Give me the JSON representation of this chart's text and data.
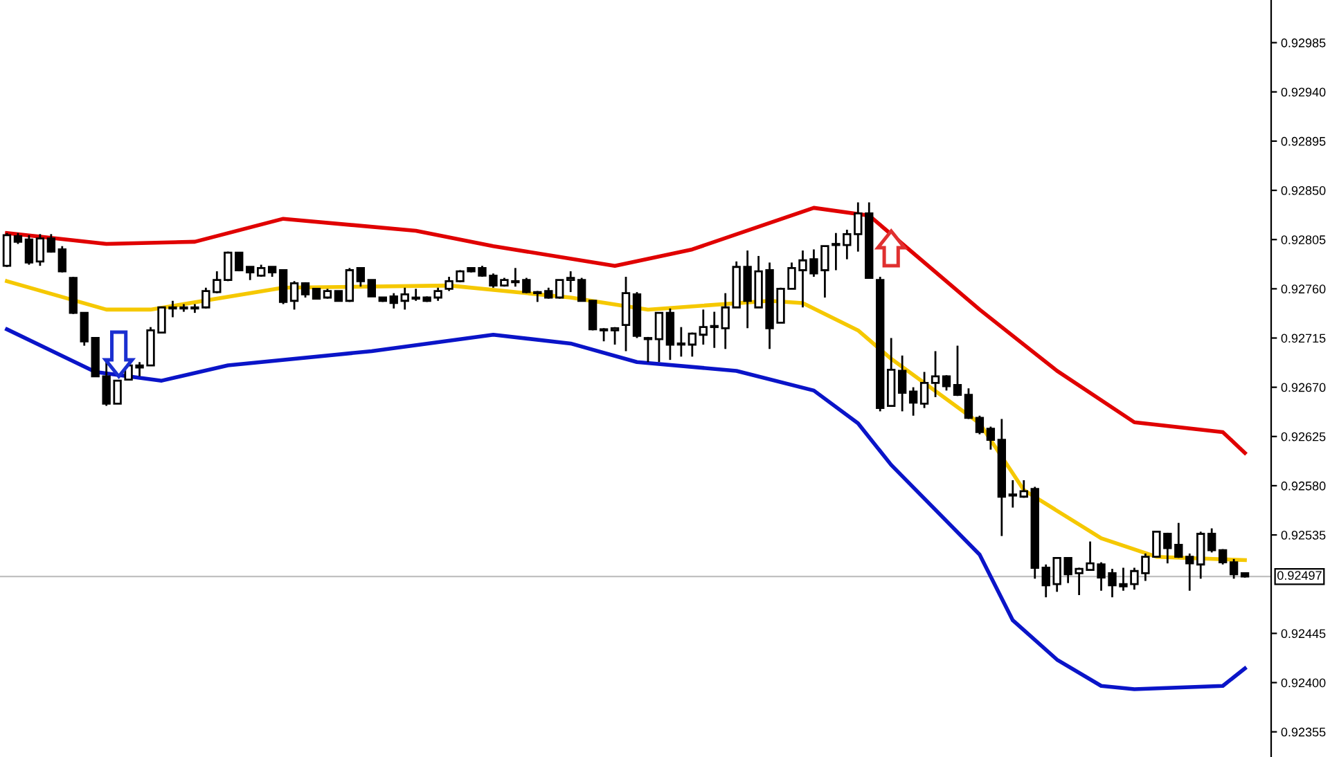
{
  "chart_data": {
    "type": "candlestick",
    "categories": [
      null,
      null,
      null,
      null,
      null,
      null,
      null,
      null,
      null,
      null,
      null,
      null,
      null,
      null,
      null,
      null,
      null,
      null,
      null,
      null,
      null,
      null,
      null,
      null,
      null,
      null,
      null,
      null,
      null,
      null,
      null,
      null,
      null,
      null,
      null,
      null,
      null,
      null,
      null,
      null,
      null,
      null,
      null,
      null,
      null,
      null,
      null,
      null,
      null,
      null,
      null,
      null,
      null,
      null,
      null,
      null,
      null,
      null,
      null,
      null,
      null,
      null,
      null,
      null,
      null,
      null,
      null,
      null,
      null,
      null,
      null,
      null,
      null,
      null,
      null,
      null,
      null,
      null,
      null,
      null,
      null,
      null,
      null,
      null,
      null,
      null,
      null,
      null,
      null,
      null,
      null,
      null,
      null,
      null,
      null,
      null,
      null,
      null,
      null,
      null,
      null,
      null,
      null,
      null,
      null,
      null,
      null,
      null,
      null,
      null,
      null,
      null,
      null
    ],
    "ohlc": [
      [
        0.92781,
        0.92811,
        0.9278,
        0.92809
      ],
      [
        0.92808,
        0.92811,
        0.92801,
        0.92803
      ],
      [
        0.92805,
        0.92809,
        0.92782,
        0.92784
      ],
      [
        0.92785,
        0.9281,
        0.92781,
        0.92806
      ],
      [
        0.92806,
        0.9281,
        0.92793,
        0.92794
      ],
      [
        0.92796,
        0.92799,
        0.92775,
        0.92776
      ],
      [
        0.9277,
        0.92771,
        0.92737,
        0.92738
      ],
      [
        0.92738,
        0.92738,
        0.92708,
        0.92712
      ],
      [
        0.92715,
        0.92715,
        0.9268,
        0.9268
      ],
      [
        0.9268,
        0.92696,
        0.92653,
        0.92655
      ],
      [
        0.92655,
        0.92676,
        0.92655,
        0.92676
      ],
      [
        0.92677,
        0.9269,
        0.92677,
        0.9269
      ],
      [
        0.9269,
        0.92693,
        0.9268,
        0.92688
      ],
      [
        0.9269,
        0.92725,
        0.9269,
        0.92722
      ],
      [
        0.9272,
        0.92743,
        0.9272,
        0.92743
      ],
      [
        0.92743,
        0.92749,
        0.92734,
        0.92742
      ],
      [
        0.92742,
        0.92746,
        0.92739,
        0.92743
      ],
      [
        0.92742,
        0.92746,
        0.92738,
        0.92743
      ],
      [
        0.92743,
        0.92761,
        0.92742,
        0.92758
      ],
      [
        0.92757,
        0.92776,
        0.92756,
        0.92768
      ],
      [
        0.92768,
        0.92794,
        0.92767,
        0.92793
      ],
      [
        0.92793,
        0.92793,
        0.92776,
        0.92777
      ],
      [
        0.9278,
        0.9278,
        0.92768,
        0.92775
      ],
      [
        0.92772,
        0.92782,
        0.92771,
        0.92779
      ],
      [
        0.9278,
        0.9278,
        0.92771,
        0.92775
      ],
      [
        0.92777,
        0.92777,
        0.92746,
        0.92748
      ],
      [
        0.92749,
        0.92767,
        0.92741,
        0.92765
      ],
      [
        0.92765,
        0.92766,
        0.92752,
        0.92755
      ],
      [
        0.9276,
        0.9276,
        0.92751,
        0.92751
      ],
      [
        0.92752,
        0.9276,
        0.92751,
        0.92758
      ],
      [
        0.92758,
        0.92758,
        0.92749,
        0.92749
      ],
      [
        0.92749,
        0.92779,
        0.92748,
        0.92777
      ],
      [
        0.92779,
        0.92779,
        0.92762,
        0.92767
      ],
      [
        0.92768,
        0.92768,
        0.92753,
        0.92753
      ],
      [
        0.92752,
        0.92752,
        0.92748,
        0.92749
      ],
      [
        0.92753,
        0.92756,
        0.92742,
        0.92747
      ],
      [
        0.92749,
        0.92761,
        0.92741,
        0.92755
      ],
      [
        0.92751,
        0.9276,
        0.92749,
        0.92752
      ],
      [
        0.92752,
        0.92753,
        0.92748,
        0.92749
      ],
      [
        0.92752,
        0.92761,
        0.92749,
        0.92758
      ],
      [
        0.9276,
        0.92771,
        0.92758,
        0.92767
      ],
      [
        0.92767,
        0.92777,
        0.92766,
        0.92776
      ],
      [
        0.92779,
        0.92779,
        0.92775,
        0.92776
      ],
      [
        0.92779,
        0.92781,
        0.92771,
        0.92772
      ],
      [
        0.92772,
        0.92774,
        0.92761,
        0.92763
      ],
      [
        0.92763,
        0.9277,
        0.92762,
        0.92768
      ],
      [
        0.92766,
        0.92779,
        0.92762,
        0.92767
      ],
      [
        0.92768,
        0.9277,
        0.92756,
        0.92757
      ],
      [
        0.92757,
        0.92758,
        0.92748,
        0.92756
      ],
      [
        0.92758,
        0.92761,
        0.92751,
        0.92752
      ],
      [
        0.92752,
        0.92768,
        0.92751,
        0.92768
      ],
      [
        0.92768,
        0.92776,
        0.92757,
        0.9277
      ],
      [
        0.92768,
        0.9277,
        0.92749,
        0.92749
      ],
      [
        0.92749,
        0.92749,
        0.92722,
        0.92723
      ],
      [
        0.92723,
        0.92724,
        0.92712,
        0.92722
      ],
      [
        0.92722,
        0.92725,
        0.92709,
        0.92724
      ],
      [
        0.92727,
        0.92771,
        0.92703,
        0.92756
      ],
      [
        0.92755,
        0.92757,
        0.92715,
        0.92717
      ],
      [
        0.92715,
        0.92716,
        0.92693,
        0.92714
      ],
      [
        0.92714,
        0.92738,
        0.92693,
        0.92738
      ],
      [
        0.92738,
        0.92742,
        0.92695,
        0.92709
      ],
      [
        0.92709,
        0.92725,
        0.92698,
        0.9271
      ],
      [
        0.92709,
        0.9272,
        0.92698,
        0.92719
      ],
      [
        0.92718,
        0.92741,
        0.92709,
        0.92725
      ],
      [
        0.92725,
        0.92739,
        0.92706,
        0.92726
      ],
      [
        0.92724,
        0.92756,
        0.92705,
        0.92743
      ],
      [
        0.92743,
        0.92785,
        0.92743,
        0.9278
      ],
      [
        0.9278,
        0.92795,
        0.92724,
        0.92749
      ],
      [
        0.92743,
        0.9279,
        0.92743,
        0.92776
      ],
      [
        0.92777,
        0.92784,
        0.92705,
        0.92724
      ],
      [
        0.92729,
        0.92761,
        0.92729,
        0.9276
      ],
      [
        0.9276,
        0.92784,
        0.9276,
        0.92779
      ],
      [
        0.92777,
        0.92795,
        0.92743,
        0.92786
      ],
      [
        0.92787,
        0.92796,
        0.92771,
        0.92774
      ],
      [
        0.92777,
        0.92799,
        0.92752,
        0.92799
      ],
      [
        0.928,
        0.92811,
        0.92777,
        0.92801
      ],
      [
        0.928,
        0.92814,
        0.92787,
        0.9281
      ],
      [
        0.9281,
        0.92839,
        0.92794,
        0.92829
      ],
      [
        0.92829,
        0.92839,
        0.9277,
        0.9277
      ],
      [
        0.92768,
        0.92771,
        0.92648,
        0.92651
      ],
      [
        0.92653,
        0.92715,
        0.92653,
        0.92686
      ],
      [
        0.92685,
        0.92699,
        0.92648,
        0.92665
      ],
      [
        0.92666,
        0.9267,
        0.92644,
        0.92656
      ],
      [
        0.92655,
        0.92684,
        0.92651,
        0.92674
      ],
      [
        0.92674,
        0.92703,
        0.92661,
        0.9268
      ],
      [
        0.9268,
        0.92681,
        0.92667,
        0.92671
      ],
      [
        0.92672,
        0.92708,
        0.92662,
        0.92663
      ],
      [
        0.92663,
        0.92669,
        0.92641,
        0.92642
      ],
      [
        0.92642,
        0.92644,
        0.92627,
        0.92629
      ],
      [
        0.92632,
        0.92634,
        0.92613,
        0.92622
      ],
      [
        0.92622,
        0.92641,
        0.92534,
        0.9257
      ],
      [
        0.92571,
        0.92585,
        0.9256,
        0.92572
      ],
      [
        0.9257,
        0.92585,
        0.92569,
        0.92575
      ],
      [
        0.92577,
        0.92579,
        0.92495,
        0.92505
      ],
      [
        0.92505,
        0.92508,
        0.92478,
        0.92489
      ],
      [
        0.9249,
        0.92514,
        0.92483,
        0.92514
      ],
      [
        0.92514,
        0.92514,
        0.92491,
        0.92499
      ],
      [
        0.925,
        0.92505,
        0.9248,
        0.92504
      ],
      [
        0.92503,
        0.92529,
        0.92503,
        0.92509
      ],
      [
        0.92508,
        0.9251,
        0.92484,
        0.92496
      ],
      [
        0.925,
        0.92504,
        0.92478,
        0.92489
      ],
      [
        0.9249,
        0.92505,
        0.92484,
        0.92488
      ],
      [
        0.9249,
        0.92505,
        0.92485,
        0.92502
      ],
      [
        0.925,
        0.92518,
        0.92493,
        0.92515
      ],
      [
        0.92515,
        0.92538,
        0.92515,
        0.92538
      ],
      [
        0.92536,
        0.92537,
        0.92509,
        0.92523
      ],
      [
        0.92526,
        0.92546,
        0.92514,
        0.92515
      ],
      [
        0.92515,
        0.92518,
        0.92484,
        0.92509
      ],
      [
        0.92508,
        0.92538,
        0.92495,
        0.92536
      ],
      [
        0.92536,
        0.92541,
        0.92519,
        0.92521
      ],
      [
        0.92521,
        0.92522,
        0.92508,
        0.9251
      ],
      [
        0.9251,
        0.92513,
        0.92495,
        0.92499
      ],
      [
        0.925,
        0.925,
        0.92496,
        0.92497
      ]
    ],
    "series": [
      {
        "type": "line",
        "color": "#e00000",
        "values": [
          0.92811,
          null,
          null,
          null,
          null,
          null,
          null,
          null,
          null,
          0.92801,
          null,
          null,
          null,
          null,
          null,
          null,
          null,
          0.92803,
          null,
          null,
          null,
          null,
          null,
          null,
          null,
          0.92824,
          null,
          null,
          null,
          null,
          null,
          null,
          null,
          null,
          null,
          null,
          null,
          0.92813,
          null,
          null,
          null,
          null,
          null,
          null,
          0.92799,
          null,
          null,
          null,
          null,
          null,
          null,
          null,
          null,
          null,
          null,
          0.92781,
          null,
          null,
          null,
          null,
          null,
          null,
          0.92796,
          null,
          null,
          null,
          null,
          null,
          null,
          null,
          null,
          null,
          null,
          0.92834,
          null,
          null,
          null,
          null,
          0.92827,
          null,
          null,
          null,
          null,
          null,
          null,
          null,
          null,
          null,
          0.92741,
          null,
          null,
          null,
          null,
          null,
          null,
          0.92685,
          null,
          null,
          null,
          null,
          null,
          null,
          0.92638,
          null,
          null,
          null,
          null,
          null,
          null,
          null,
          0.92629,
          null,
          0.9261
        ]
      },
      {
        "type": "line",
        "color": "#f5c800",
        "values": [
          0.92767,
          null,
          null,
          null,
          null,
          null,
          null,
          null,
          null,
          0.92741,
          null,
          null,
          null,
          0.92741,
          null,
          null,
          null,
          null,
          null,
          null,
          null,
          null,
          null,
          null,
          null,
          0.92761,
          null,
          null,
          null,
          null,
          null,
          null,
          null,
          null,
          null,
          null,
          null,
          null,
          null,
          null,
          0.92763,
          null,
          null,
          null,
          null,
          null,
          null,
          null,
          null,
          null,
          null,
          0.92752,
          null,
          null,
          null,
          null,
          null,
          null,
          0.92741,
          null,
          null,
          null,
          null,
          null,
          null,
          null,
          null,
          null,
          null,
          0.92749,
          null,
          null,
          0.92747,
          null,
          null,
          null,
          null,
          0.92722,
          null,
          null,
          0.92696,
          null,
          null,
          null,
          null,
          null,
          null,
          null,
          0.92637,
          null,
          null,
          null,
          0.92576,
          null,
          null,
          null,
          null,
          null,
          null,
          0.92532,
          null,
          null,
          null,
          null,
          0.92515,
          null,
          null,
          null,
          null,
          null,
          null,
          null,
          0.92512
        ]
      },
      {
        "type": "line",
        "color": "#0a14c8",
        "values": [
          0.92723,
          null,
          null,
          null,
          null,
          null,
          null,
          null,
          0.92684,
          null,
          null,
          null,
          null,
          null,
          0.92676,
          null,
          null,
          null,
          null,
          null,
          0.9269,
          null,
          null,
          null,
          null,
          null,
          null,
          null,
          null,
          null,
          null,
          null,
          null,
          0.92703,
          null,
          null,
          null,
          null,
          null,
          null,
          null,
          null,
          null,
          null,
          0.92718,
          null,
          null,
          null,
          null,
          null,
          null,
          0.9271,
          null,
          null,
          null,
          null,
          null,
          0.92693,
          null,
          null,
          null,
          null,
          null,
          null,
          null,
          null,
          0.92685,
          null,
          null,
          null,
          null,
          null,
          null,
          0.92667,
          null,
          null,
          null,
          0.92637,
          null,
          null,
          0.92599,
          null,
          null,
          null,
          null,
          null,
          null,
          null,
          0.92517,
          null,
          null,
          0.92457,
          null,
          null,
          null,
          0.92421,
          null,
          null,
          null,
          0.92397,
          null,
          null,
          0.92394,
          null,
          null,
          null,
          null,
          null,
          null,
          null,
          0.92397,
          null,
          0.92413
        ]
      }
    ],
    "ylim": [
      0.92332,
      0.93024
    ],
    "yticks": [
      0.92985,
      {
        "value": 0.9294,
        "label": "0.92940"
      },
      0.92895,
      {
        "value": 0.9285,
        "label": "0.92850"
      },
      0.92805,
      {
        "value": 0.9276,
        "label": "0.92760"
      },
      0.92715,
      {
        "value": 0.9267,
        "label": "0.92670"
      },
      0.92625,
      {
        "value": 0.9258,
        "label": "0.92580"
      },
      0.92535,
      0.92445,
      {
        "value": 0.924,
        "label": "0.92400"
      },
      0.92355
    ],
    "ref_lines": [
      {
        "axis": "y",
        "value": 0.92497,
        "label": "0.92497",
        "color": "#c0c0c0"
      }
    ],
    "tick_labels": "y",
    "grid": false,
    "legend": false
  }
}
